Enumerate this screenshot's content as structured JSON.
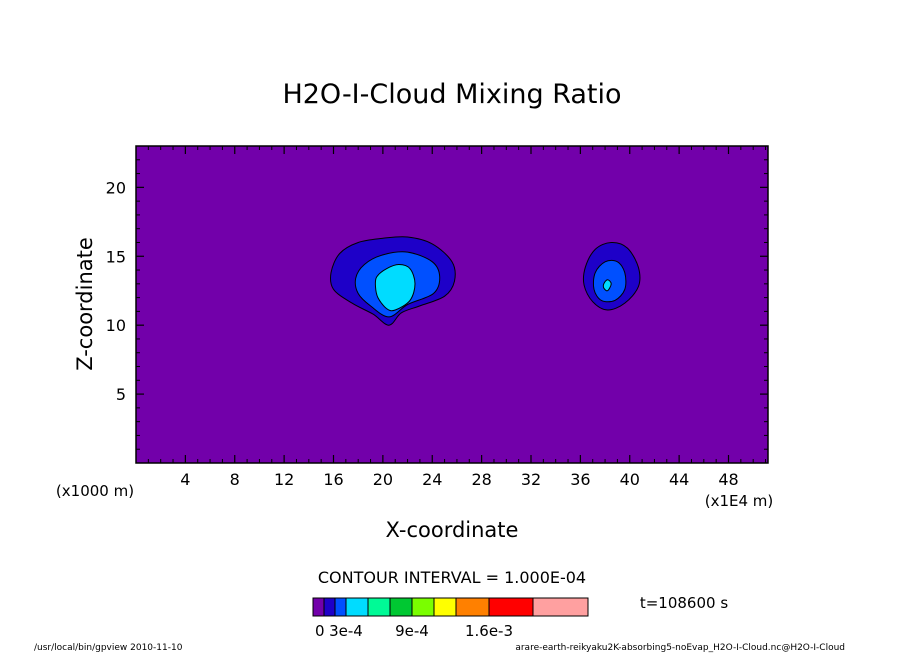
{
  "chart_data": {
    "type": "contour",
    "title": "H2O-I-Cloud Mixing Ratio",
    "xlabel": "X-coordinate",
    "ylabel": "Z-coordinate",
    "x_unit_left": "(x1000 m)",
    "x_unit_right": "(x1E4 m)",
    "xlim": [
      0,
      51.2
    ],
    "ylim": [
      0,
      23
    ],
    "x_ticks": [
      4,
      8,
      12,
      16,
      20,
      24,
      28,
      32,
      36,
      40,
      44,
      48
    ],
    "y_ticks": [
      5,
      10,
      15,
      20
    ],
    "contour_interval": "CONTOUR INTERVAL = 1.000E-04",
    "time_label": "t=108600 s",
    "background_color": "#7200aa",
    "levels": [
      {
        "color": "#7200aa"
      },
      {
        "color": "#1e00c8"
      },
      {
        "color": "#0050ff"
      },
      {
        "color": "#00dcff"
      },
      {
        "color": "#00fa96"
      },
      {
        "color": "#00c832"
      },
      {
        "color": "#7afe00"
      },
      {
        "color": "#ffff00"
      },
      {
        "color": "#ff8000"
      },
      {
        "color": "#ff0000"
      },
      {
        "color": "#ffa0a0"
      }
    ],
    "colorbar_labels": [
      "0",
      "3e-4",
      "9e-4",
      "1.6e-3"
    ],
    "regions": [
      {
        "level": 1,
        "points": [
          [
            15.8,
            13.8
          ],
          [
            16.5,
            15.2
          ],
          [
            18.0,
            16.0
          ],
          [
            20.0,
            16.3
          ],
          [
            22.0,
            16.4
          ],
          [
            24.0,
            15.9
          ],
          [
            25.6,
            14.6
          ],
          [
            25.8,
            13.2
          ],
          [
            25.0,
            12.1
          ],
          [
            23.0,
            11.4
          ],
          [
            21.5,
            10.9
          ],
          [
            20.5,
            10.0
          ],
          [
            19.2,
            10.8
          ],
          [
            17.5,
            11.6
          ],
          [
            16.0,
            12.6
          ]
        ]
      },
      {
        "level": 2,
        "points": [
          [
            17.8,
            13.4
          ],
          [
            18.5,
            14.4
          ],
          [
            20.0,
            15.1
          ],
          [
            22.0,
            15.3
          ],
          [
            24.0,
            14.6
          ],
          [
            24.6,
            13.5
          ],
          [
            24.1,
            12.3
          ],
          [
            22.0,
            11.5
          ],
          [
            20.5,
            10.6
          ],
          [
            19.0,
            11.4
          ],
          [
            18.0,
            12.3
          ]
        ]
      },
      {
        "level": 3,
        "points": [
          [
            19.5,
            13.5
          ],
          [
            20.3,
            14.1
          ],
          [
            21.3,
            14.4
          ],
          [
            22.2,
            14.1
          ],
          [
            22.6,
            13.0
          ],
          [
            22.2,
            11.8
          ],
          [
            21.0,
            11.1
          ],
          [
            20.3,
            11.2
          ],
          [
            19.6,
            12.0
          ],
          [
            19.4,
            12.8
          ]
        ]
      },
      {
        "level": 1,
        "points": [
          [
            36.4,
            14.2
          ],
          [
            37.2,
            15.5
          ],
          [
            38.5,
            16.0
          ],
          [
            39.8,
            15.6
          ],
          [
            40.7,
            14.2
          ],
          [
            40.7,
            12.8
          ],
          [
            39.6,
            11.6
          ],
          [
            38.2,
            11.1
          ],
          [
            37.0,
            11.7
          ],
          [
            36.3,
            12.9
          ]
        ]
      },
      {
        "level": 2,
        "points": [
          [
            37.2,
            13.8
          ],
          [
            38.0,
            14.6
          ],
          [
            39.0,
            14.6
          ],
          [
            39.6,
            13.8
          ],
          [
            39.6,
            12.6
          ],
          [
            38.8,
            11.8
          ],
          [
            37.7,
            11.8
          ],
          [
            37.1,
            12.6
          ]
        ]
      },
      {
        "level": 3,
        "points": [
          [
            37.9,
            13.0
          ],
          [
            38.2,
            13.3
          ],
          [
            38.5,
            13.0
          ],
          [
            38.2,
            12.5
          ],
          [
            37.9,
            12.7
          ]
        ]
      }
    ],
    "footer_left": "/usr/local/bin/gpview  2010-11-10",
    "footer_right": "arare-earth-reikyaku2K-absorbing5-noEvap_H2O-I-Cloud.nc@H2O-I-Cloud"
  }
}
